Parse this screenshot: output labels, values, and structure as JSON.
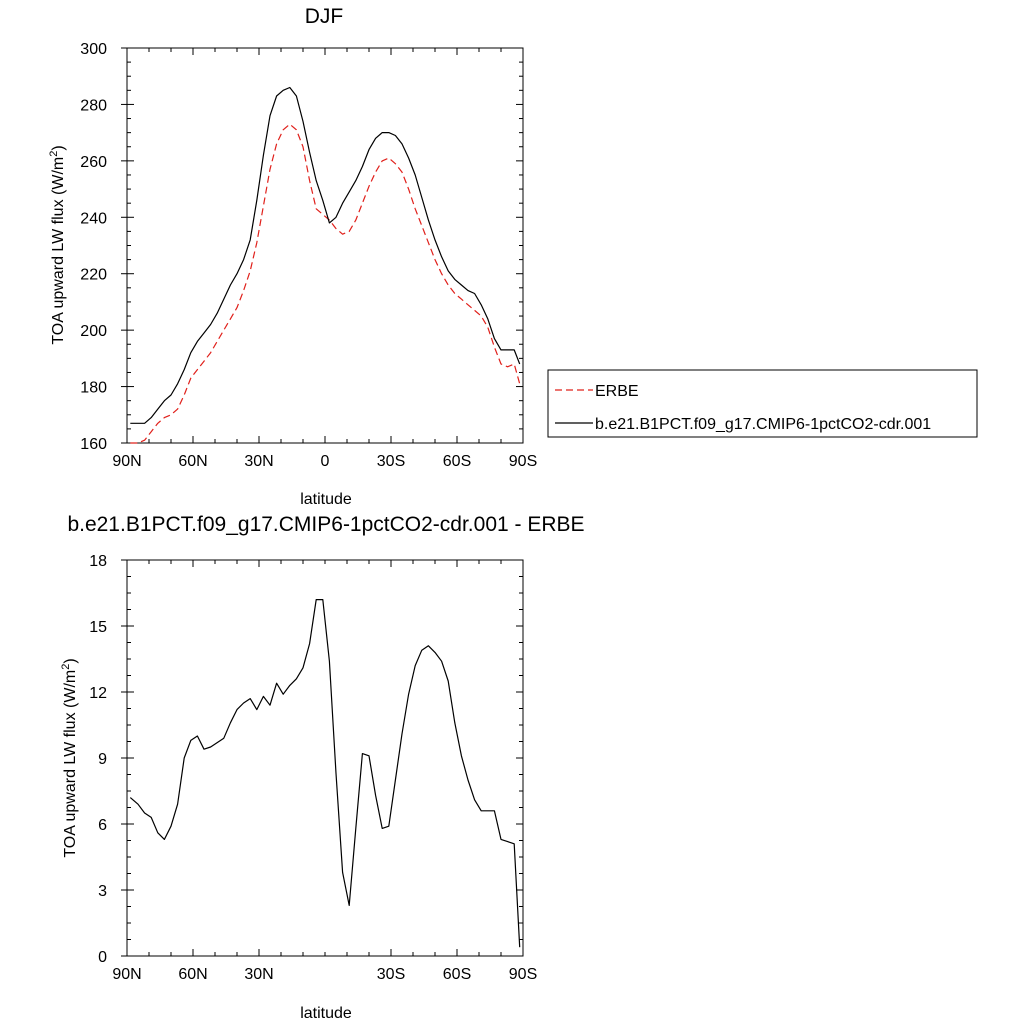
{
  "chart_data": [
    {
      "type": "line",
      "title": "DJF",
      "xlabel": "latitude",
      "ylabel_main": "TOA upward LW flux (W/m",
      "ylabel_sup": "2",
      "ylabel_close": ")",
      "xlim": [
        90,
        -90
      ],
      "ylim": [
        160,
        300
      ],
      "xticks": [
        90,
        60,
        30,
        0,
        -30,
        -60,
        -90
      ],
      "xtick_labels": [
        "90N",
        "60N",
        "30N",
        "0",
        "30S",
        "60S",
        "90S"
      ],
      "yticks": [
        160,
        180,
        200,
        220,
        240,
        260,
        280,
        300
      ],
      "ytick_labels": [
        "160",
        "180",
        "200",
        "220",
        "240",
        "260",
        "280",
        "300"
      ],
      "legend_position": "right",
      "series": [
        {
          "name": "ERBE",
          "color": "#e0201b",
          "dash": "dashed",
          "x": [
            88.5,
            85,
            82,
            79,
            76,
            73,
            70,
            67,
            64,
            61,
            58,
            55,
            52,
            49,
            46,
            43,
            40,
            37,
            34,
            31,
            28,
            25,
            22,
            19,
            16,
            13,
            10,
            7,
            4,
            1,
            -2,
            -5,
            -8,
            -11,
            -14,
            -17,
            -20,
            -23,
            -26,
            -29,
            -32,
            -35,
            -38,
            -41,
            -44,
            -47,
            -50,
            -53,
            -56,
            -59,
            -62,
            -65,
            -68,
            -71,
            -74,
            -77,
            -80,
            -83,
            -86,
            -88.5
          ],
          "y": [
            160,
            160,
            161,
            164,
            167,
            169,
            170,
            172,
            177,
            183,
            186,
            189,
            192,
            196,
            200,
            204,
            208,
            214,
            221,
            231,
            244,
            257,
            266,
            271,
            273,
            271,
            265,
            253,
            243,
            241,
            239,
            236,
            234,
            235,
            239,
            245,
            251,
            256,
            260,
            261,
            259,
            256,
            250,
            243,
            237,
            231,
            225,
            220,
            216,
            213,
            211,
            209,
            207,
            205,
            201,
            194,
            188,
            187,
            188,
            181
          ]
        },
        {
          "name": "b.e21.B1PCT.f09_g17.CMIP6-1pctCO2-cdr.001",
          "color": "#000000",
          "dash": "solid",
          "x": [
            88.5,
            85,
            82,
            79,
            76,
            73,
            70,
            67,
            64,
            61,
            58,
            55,
            52,
            49,
            46,
            43,
            40,
            37,
            34,
            31,
            28,
            25,
            22,
            19,
            16,
            13,
            10,
            7,
            4,
            1,
            -2,
            -5,
            -8,
            -11,
            -14,
            -17,
            -20,
            -23,
            -26,
            -29,
            -32,
            -35,
            -38,
            -41,
            -44,
            -47,
            -50,
            -53,
            -56,
            -59,
            -62,
            -65,
            -68,
            -71,
            -74,
            -77,
            -80,
            -83,
            -86,
            -88.5
          ],
          "y": [
            167,
            167,
            167,
            169,
            172,
            175,
            177,
            181,
            186,
            192,
            196,
            199,
            202,
            206,
            211,
            216,
            220,
            225,
            232,
            246,
            262,
            276,
            283,
            285,
            286,
            283,
            274,
            263,
            253,
            246,
            238,
            240,
            245,
            249,
            253,
            258,
            264,
            268,
            270,
            270,
            269,
            266,
            261,
            255,
            247,
            239,
            232,
            226,
            221,
            218,
            216,
            214,
            213,
            209,
            204,
            197,
            193,
            193,
            193,
            188
          ]
        }
      ]
    },
    {
      "type": "line",
      "title": "b.e21.B1PCT.f09_g17.CMIP6-1pctCO2-cdr.001 - ERBE",
      "xlabel": "latitude",
      "ylabel_main": "TOA upward LW flux (W/m",
      "ylabel_sup": "2",
      "ylabel_close": ")",
      "xlim": [
        90,
        -90
      ],
      "ylim": [
        0,
        18
      ],
      "xticks": [
        90,
        60,
        30,
        -30,
        -60,
        -90
      ],
      "xtick_labels": [
        "90N",
        "60N",
        "30N",
        "30S",
        "60S",
        "90S"
      ],
      "yticks": [
        0,
        3,
        6,
        9,
        12,
        15,
        18
      ],
      "ytick_labels": [
        "0",
        "3",
        "6",
        "9",
        "12",
        "15",
        "18"
      ],
      "series": [
        {
          "color": "#000000",
          "dash": "solid",
          "x": [
            88.5,
            85,
            82,
            79,
            76,
            73,
            70,
            67,
            64,
            61,
            58,
            55,
            52,
            49,
            46,
            43,
            40,
            37,
            34,
            31,
            28,
            25,
            22,
            19,
            16,
            13,
            10,
            7,
            4,
            1,
            -2,
            -5,
            -8,
            -11,
            -14,
            -17,
            -20,
            -23,
            -26,
            -29,
            -32,
            -35,
            -38,
            -41,
            -44,
            -47,
            -50,
            -53,
            -56,
            -59,
            -62,
            -65,
            -68,
            -71,
            -74,
            -77,
            -80,
            -83,
            -86,
            -88.5
          ],
          "y": [
            7.2,
            6.9,
            6.5,
            6.3,
            5.6,
            5.3,
            5.9,
            6.9,
            9.0,
            9.8,
            10.0,
            9.4,
            9.5,
            9.7,
            9.9,
            10.6,
            11.2,
            11.5,
            11.7,
            11.2,
            11.8,
            11.4,
            12.4,
            11.9,
            12.3,
            12.6,
            13.1,
            14.2,
            16.2,
            16.2,
            13.4,
            8.3,
            3.8,
            2.3,
            5.8,
            9.2,
            9.1,
            7.3,
            5.8,
            5.9,
            8.0,
            10.1,
            11.9,
            13.2,
            13.9,
            14.1,
            13.8,
            13.4,
            12.5,
            10.6,
            9.1,
            8.0,
            7.1,
            6.6,
            6.6,
            6.6,
            5.3,
            5.2,
            5.1,
            0.4
          ]
        }
      ]
    }
  ]
}
